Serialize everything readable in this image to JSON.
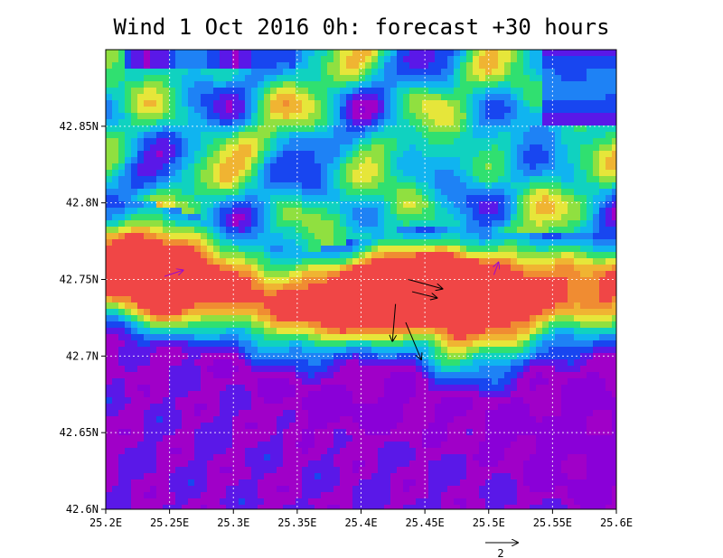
{
  "title": "Wind 1 Oct 2016 0h: forecast +30 hours",
  "chart_data": {
    "type": "heatmap",
    "title": "Wind 1 Oct 2016 0h: forecast +30 hours",
    "xlim": [
      25.2,
      25.6
    ],
    "ylim": [
      42.6,
      42.9
    ],
    "x_ticks": [
      {
        "value": 25.2,
        "label": "25.2E"
      },
      {
        "value": 25.25,
        "label": "25.25E"
      },
      {
        "value": 25.3,
        "label": "25.3E"
      },
      {
        "value": 25.35,
        "label": "25.35E"
      },
      {
        "value": 25.4,
        "label": "25.4E"
      },
      {
        "value": 25.45,
        "label": "25.45E"
      },
      {
        "value": 25.5,
        "label": "25.5E"
      },
      {
        "value": 25.55,
        "label": "25.55E"
      },
      {
        "value": 25.6,
        "label": "25.6E"
      }
    ],
    "y_ticks": [
      {
        "value": 42.6,
        "label": "42.6N"
      },
      {
        "value": 42.65,
        "label": "42.65N"
      },
      {
        "value": 42.7,
        "label": "42.7N"
      },
      {
        "value": 42.75,
        "label": "42.75N"
      },
      {
        "value": 42.8,
        "label": "42.8N"
      },
      {
        "value": 42.85,
        "label": "42.85N"
      }
    ],
    "grid": true,
    "palette": [
      "#8a00d8",
      "#a000c8",
      "#5a18e8",
      "#1846f0",
      "#1e82f5",
      "#10b4f0",
      "#10d2c0",
      "#30e070",
      "#90e040",
      "#e6e63a",
      "#f0b432",
      "#f08c32",
      "#f04646"
    ],
    "wind_vectors": [
      {
        "lon": 25.246,
        "lat": 42.752,
        "u": 0.6,
        "v": 0.2
      },
      {
        "lon": 25.437,
        "lat": 42.75,
        "u": 1.1,
        "v": -0.3
      },
      {
        "lon": 25.44,
        "lat": 42.742,
        "u": 0.8,
        "v": -0.2
      },
      {
        "lon": 25.427,
        "lat": 42.734,
        "u": -0.1,
        "v": -1.2
      },
      {
        "lon": 25.435,
        "lat": 42.722,
        "u": 0.5,
        "v": -1.2
      },
      {
        "lon": 25.504,
        "lat": 42.753,
        "u": 0.15,
        "v": 0.4
      }
    ],
    "vector_scale": {
      "value": 2,
      "label": "2"
    }
  }
}
